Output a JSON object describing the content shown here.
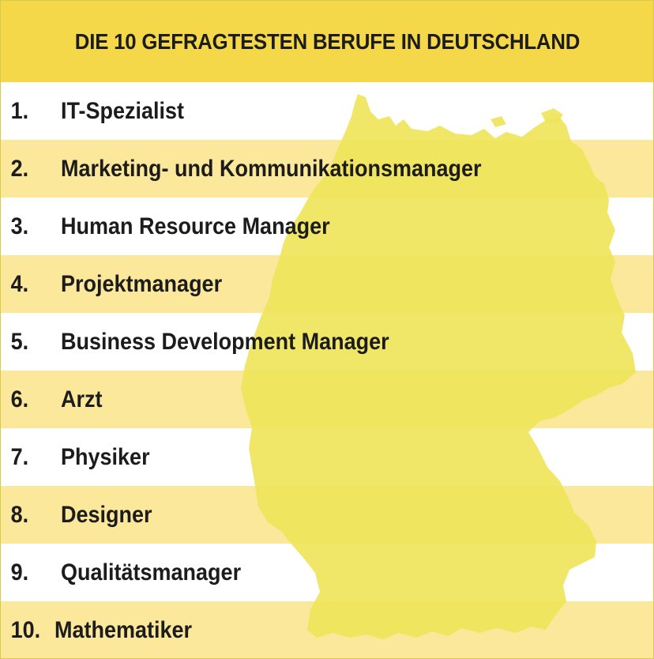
{
  "title": "DIE 10 GEFRAGTESTEN BERUFE IN DEUTSCHLAND",
  "colors": {
    "header_bg": "#f5d84a",
    "stripe": "#fbe89a",
    "map": "#efe45a",
    "text": "#1c1c1c"
  },
  "ranking": [
    {
      "rank": "1.",
      "label": "IT-Spezialist"
    },
    {
      "rank": "2.",
      "label": "Marketing- und Kommunikationsmanager"
    },
    {
      "rank": "3.",
      "label": "Human Resource Manager"
    },
    {
      "rank": "4.",
      "label": "Projektmanager"
    },
    {
      "rank": "5.",
      "label": "Business Development Manager"
    },
    {
      "rank": "6.",
      "label": "Arzt"
    },
    {
      "rank": "7.",
      "label": "Physiker"
    },
    {
      "rank": "8.",
      "label": "Designer"
    },
    {
      "rank": "9.",
      "label": "Qualitätsmanager"
    },
    {
      "rank": "10.",
      "label": "Mathematiker"
    }
  ]
}
